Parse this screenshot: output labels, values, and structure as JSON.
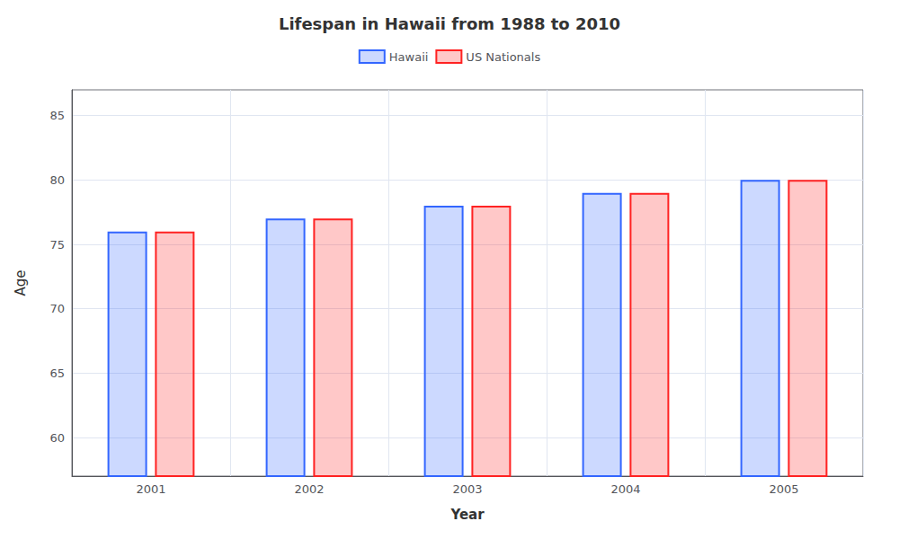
{
  "chart_data": {
    "type": "bar",
    "title": "Lifespan in Hawaii from 1988 to 2010",
    "xlabel": "Year",
    "ylabel": "Age",
    "categories": [
      2001,
      2002,
      2003,
      2004,
      2005
    ],
    "series": [
      {
        "name": "Hawaii",
        "color": "#3366ff",
        "values": [
          76,
          77,
          78,
          79,
          80
        ]
      },
      {
        "name": "US Nationals",
        "color": "#ff2222",
        "values": [
          76,
          77,
          78,
          79,
          80
        ]
      }
    ],
    "ylim": [
      57,
      87
    ],
    "yticks": [
      60,
      65,
      70,
      75,
      80,
      85
    ],
    "grid": true,
    "legend": "top"
  }
}
